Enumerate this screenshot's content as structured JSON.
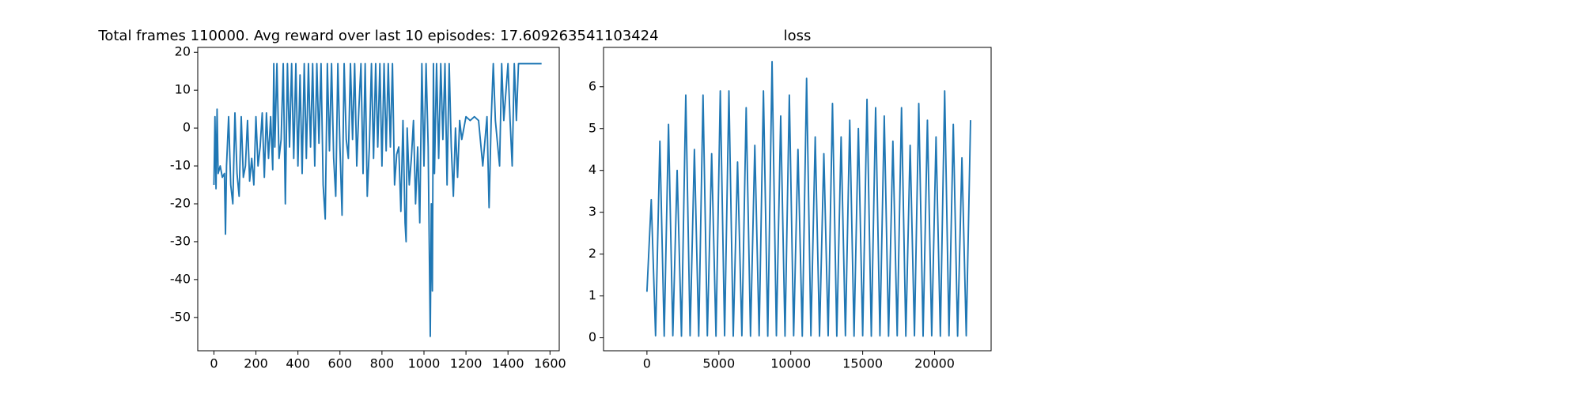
{
  "chart_data": [
    {
      "type": "line",
      "title": "Total frames 110000. Avg reward over last 10 episodes: 17.609263541103424",
      "color": "#1f77b4",
      "x": [
        0,
        5,
        10,
        15,
        20,
        30,
        40,
        50,
        55,
        60,
        70,
        80,
        90,
        100,
        110,
        120,
        130,
        140,
        150,
        160,
        170,
        180,
        190,
        200,
        210,
        220,
        230,
        240,
        250,
        260,
        270,
        280,
        285,
        290,
        300,
        310,
        320,
        330,
        340,
        350,
        360,
        370,
        380,
        390,
        400,
        410,
        420,
        430,
        440,
        450,
        460,
        470,
        480,
        490,
        500,
        510,
        520,
        530,
        540,
        550,
        560,
        570,
        580,
        590,
        600,
        610,
        620,
        630,
        640,
        650,
        660,
        670,
        680,
        690,
        700,
        710,
        720,
        730,
        740,
        750,
        760,
        770,
        780,
        790,
        800,
        810,
        820,
        830,
        840,
        850,
        860,
        870,
        880,
        890,
        900,
        910,
        915,
        920,
        930,
        940,
        950,
        960,
        970,
        980,
        990,
        1000,
        1010,
        1020,
        1030,
        1035,
        1040,
        1045,
        1050,
        1060,
        1070,
        1080,
        1090,
        1100,
        1110,
        1120,
        1130,
        1140,
        1150,
        1160,
        1170,
        1180,
        1200,
        1220,
        1240,
        1260,
        1280,
        1300,
        1310,
        1320,
        1330,
        1340,
        1360,
        1370,
        1380,
        1400,
        1410,
        1420,
        1430,
        1440,
        1450,
        1500,
        1550,
        1560
      ],
      "values": [
        -15,
        3,
        -16,
        5,
        -12,
        -10,
        -13,
        -12,
        -28,
        -10,
        3,
        -15,
        -20,
        4,
        -12,
        -18,
        3,
        -13,
        -10,
        2,
        -14,
        -8,
        -15,
        3,
        -10,
        -5,
        4,
        -13,
        4,
        -8,
        3,
        -11,
        17,
        -5,
        17,
        -8,
        -3,
        17,
        -20,
        17,
        -5,
        17,
        -8,
        17,
        -10,
        14,
        -12,
        17,
        -8,
        17,
        -5,
        17,
        -10,
        17,
        -4,
        17,
        -15,
        -24,
        17,
        -6,
        17,
        -8,
        -18,
        17,
        -5,
        -23,
        17,
        -3,
        -8,
        17,
        -3,
        17,
        -10,
        5,
        17,
        -12,
        17,
        -18,
        -5,
        17,
        -8,
        17,
        -5,
        17,
        -10,
        17,
        -6,
        17,
        -5,
        17,
        -15,
        -7,
        -5,
        -22,
        2,
        -25,
        -30,
        0,
        -15,
        -8,
        2,
        -20,
        -5,
        -25,
        17,
        -10,
        17,
        -5,
        -55,
        -20,
        -43,
        17,
        -12,
        17,
        -8,
        17,
        -3,
        17,
        -15,
        17,
        -5,
        -18,
        0,
        -13,
        2,
        -3,
        3,
        2,
        3,
        2,
        -10,
        3,
        -21,
        2,
        17,
        2,
        -10,
        17,
        2,
        17,
        2,
        -10,
        17,
        2,
        17,
        17,
        17,
        17
      ],
      "xlim": [
        -77,
        1644
      ],
      "ylim": [
        -58.8,
        21.3
      ],
      "xticks": [
        0,
        200,
        400,
        600,
        800,
        1000,
        1200,
        1400,
        1600
      ],
      "yticks": [
        -50,
        -40,
        -30,
        -20,
        -10,
        0,
        10,
        20
      ]
    },
    {
      "type": "line",
      "title": "loss",
      "color": "#1f77b4",
      "x": [
        0,
        300,
        600,
        900,
        1200,
        1500,
        1800,
        2100,
        2400,
        2700,
        3000,
        3300,
        3600,
        3900,
        4200,
        4500,
        4800,
        5100,
        5400,
        5700,
        6000,
        6300,
        6600,
        6900,
        7200,
        7500,
        7800,
        8100,
        8400,
        8700,
        9000,
        9300,
        9600,
        9900,
        10200,
        10500,
        10800,
        11100,
        11400,
        11700,
        12000,
        12300,
        12600,
        12900,
        13200,
        13500,
        13800,
        14100,
        14400,
        14700,
        15000,
        15300,
        15600,
        15900,
        16200,
        16500,
        16800,
        17100,
        17400,
        17700,
        18000,
        18300,
        18600,
        18900,
        19200,
        19500,
        19800,
        20100,
        20400,
        20700,
        21000,
        21300,
        21600,
        21900,
        22200,
        22500
      ],
      "values": [
        1.1,
        3.3,
        0.05,
        4.7,
        0.04,
        5.1,
        0.05,
        4.0,
        0.04,
        5.8,
        0.05,
        4.5,
        0.04,
        5.8,
        0.05,
        4.4,
        0.04,
        5.9,
        0.05,
        5.9,
        0.04,
        4.2,
        0.05,
        5.5,
        0.04,
        4.6,
        0.05,
        5.9,
        0.04,
        6.6,
        0.05,
        5.3,
        0.04,
        5.8,
        0.05,
        4.5,
        0.04,
        6.2,
        0.05,
        4.8,
        0.04,
        4.4,
        0.05,
        5.6,
        0.04,
        4.8,
        0.05,
        5.2,
        0.04,
        5.0,
        0.05,
        5.7,
        0.04,
        5.5,
        0.05,
        5.3,
        0.04,
        4.7,
        0.05,
        5.5,
        0.04,
        4.6,
        0.05,
        5.6,
        0.04,
        5.2,
        0.05,
        4.8,
        0.04,
        5.9,
        0.05,
        5.1,
        0.04,
        4.3,
        0.05,
        5.2
      ],
      "xlim": [
        -3018,
        23930
      ],
      "ylim": [
        -0.31,
        6.94
      ],
      "xticks": [
        0,
        5000,
        10000,
        15000,
        20000
      ],
      "yticks": [
        0,
        1,
        2,
        3,
        4,
        5,
        6
      ]
    }
  ]
}
